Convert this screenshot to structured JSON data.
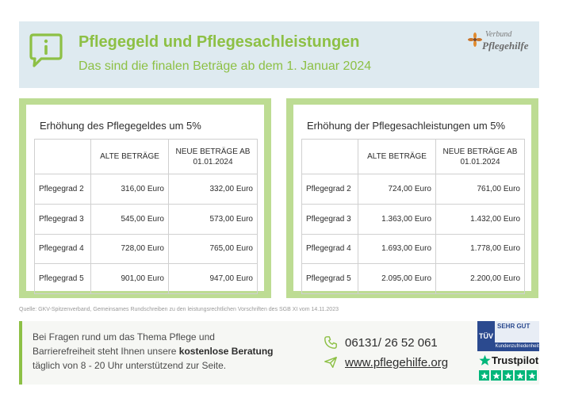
{
  "header": {
    "title": "Pflegegeld und Pflegesachleistungen",
    "subtitle": "Das sind die finalen Beträge ab dem 1. Januar 2024",
    "logo_line1": "Verbund",
    "logo_line2": "Pflegehilfe",
    "icon": "info-speech-bubble-icon"
  },
  "colors": {
    "accent_green": "#8dc045",
    "panel_green": "#bddc93",
    "header_bg": "#deeaf0"
  },
  "tables": [
    {
      "title": "Erhöhung des Pflegegeldes um 5%",
      "col_old": "ALTE BETRÄGE",
      "col_new_line1": "NEUE BETRÄGE AB",
      "col_new_line2": "01.01.2024",
      "rows": [
        {
          "grade": "Pflegegrad 2",
          "old": "316,00 Euro",
          "new": "332,00 Euro"
        },
        {
          "grade": "Pflegegrad 3",
          "old": "545,00 Euro",
          "new": "573,00 Euro"
        },
        {
          "grade": "Pflegegrad 4",
          "old": "728,00 Euro",
          "new": "765,00 Euro"
        },
        {
          "grade": "Pflegegrad 5",
          "old": "901,00 Euro",
          "new": "947,00 Euro"
        }
      ]
    },
    {
      "title": "Erhöhung der Pflegesachleistungen um 5%",
      "col_old": "ALTE BETRÄGE",
      "col_new_line1": "NEUE BETRÄGE AB",
      "col_new_line2": "01.01.2024",
      "rows": [
        {
          "grade": "Pflegegrad 2",
          "old": "724,00 Euro",
          "new": "761,00 Euro"
        },
        {
          "grade": "Pflegegrad 3",
          "old": "1.363,00 Euro",
          "new": "1.432,00 Euro"
        },
        {
          "grade": "Pflegegrad 4",
          "old": "1.693,00 Euro",
          "new": "1.778,00 Euro"
        },
        {
          "grade": "Pflegegrad 5",
          "old": "2.095,00 Euro",
          "new": "2.200,00 Euro"
        }
      ]
    }
  ],
  "source": "Quelle: GKV-Spitzenverband, Gemeinsames Rundschreiben zu den leistungsrechtlichen Vorschriften des SGB XI vom 14.11.2023",
  "footer": {
    "text_line1": "Bei Fragen rund um das Thema Pflege und",
    "text_line2_pre": "Barrierefreiheit steht Ihnen unsere ",
    "text_line2_bold": "kostenlose Beratung",
    "text_line3": "täglich von 8 - 20 Uhr unterstützend zur Seite.",
    "phone": "06131/ 26 52 061",
    "website": "www.pflegehilfe.org",
    "phone_icon": "phone-icon",
    "web_icon": "paper-plane-icon"
  },
  "badges": {
    "tuv_label": "TÜV",
    "tuv_rating": "SEHR GUT",
    "tuv_bottom": "Kundenzufriedenheit",
    "trustpilot_name": "Trustpilot",
    "trustpilot_stars": 5
  }
}
